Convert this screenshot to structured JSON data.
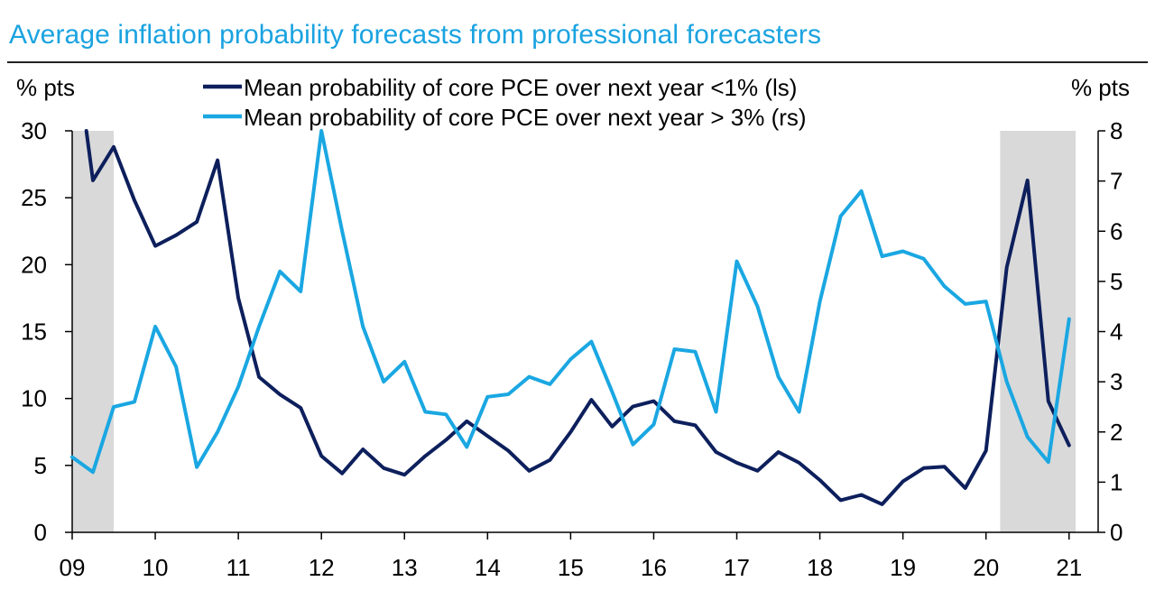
{
  "chart_data": {
    "type": "line",
    "title": "Average inflation probability forecasts from professional forecasters",
    "left_unit": "% pts",
    "right_unit": "% pts",
    "x_ticks": [
      "09",
      "10",
      "11",
      "12",
      "13",
      "14",
      "15",
      "16",
      "17",
      "18",
      "19",
      "20",
      "21"
    ],
    "x_range": [
      2009.0,
      2021.35
    ],
    "y_left": {
      "ticks": [
        "0",
        "5",
        "10",
        "15",
        "20",
        "25",
        "30"
      ],
      "range": [
        0,
        30
      ]
    },
    "y_right": {
      "ticks": [
        "0",
        "1",
        "2",
        "3",
        "4",
        "5",
        "6",
        "7",
        "8"
      ],
      "range": [
        0,
        8
      ]
    },
    "shaded_periods": [
      [
        2009.0,
        2009.5
      ],
      [
        2020.17,
        2021.08
      ]
    ],
    "series": [
      {
        "name": "Mean probability of core PCE over next year <1% (ls)",
        "axis": "left",
        "color": "#0d1f5c",
        "x": [
          2009.17,
          2009.25,
          2009.5,
          2009.75,
          2010.0,
          2010.25,
          2010.5,
          2010.75,
          2011.0,
          2011.25,
          2011.5,
          2011.75,
          2012.0,
          2012.25,
          2012.5,
          2012.75,
          2013.0,
          2013.25,
          2013.5,
          2013.75,
          2014.0,
          2014.25,
          2014.5,
          2014.75,
          2015.0,
          2015.25,
          2015.5,
          2015.75,
          2016.0,
          2016.25,
          2016.5,
          2016.75,
          2017.0,
          2017.25,
          2017.5,
          2017.75,
          2018.0,
          2018.25,
          2018.5,
          2018.75,
          2019.0,
          2019.25,
          2019.5,
          2019.75,
          2020.0,
          2020.25,
          2020.5,
          2020.75,
          2021.0
        ],
        "values": [
          30.0,
          26.3,
          28.8,
          24.8,
          21.4,
          22.2,
          23.2,
          27.8,
          17.5,
          11.6,
          10.3,
          9.3,
          5.7,
          4.4,
          6.2,
          4.8,
          4.3,
          5.7,
          6.9,
          8.3,
          7.2,
          6.1,
          4.6,
          5.4,
          7.5,
          9.9,
          7.9,
          9.4,
          9.8,
          8.3,
          8.0,
          6.0,
          5.2,
          4.6,
          6.0,
          5.2,
          3.9,
          2.4,
          2.8,
          2.1,
          3.8,
          4.8,
          4.9,
          3.3,
          6.1,
          19.8,
          26.3,
          9.8,
          6.5
        ]
      },
      {
        "name": "Mean probability of core PCE over next year > 3% (rs)",
        "axis": "right",
        "color": "#1aa7e2",
        "x": [
          2009.0,
          2009.25,
          2009.5,
          2009.75,
          2010.0,
          2010.25,
          2010.5,
          2010.75,
          2011.0,
          2011.25,
          2011.5,
          2011.75,
          2012.0,
          2012.25,
          2012.5,
          2012.75,
          2013.0,
          2013.25,
          2013.5,
          2013.75,
          2014.0,
          2014.25,
          2014.5,
          2014.75,
          2015.0,
          2015.25,
          2015.5,
          2015.75,
          2016.0,
          2016.25,
          2016.5,
          2016.75,
          2017.0,
          2017.25,
          2017.5,
          2017.75,
          2018.0,
          2018.25,
          2018.5,
          2018.75,
          2019.0,
          2019.25,
          2019.5,
          2019.75,
          2020.0,
          2020.25,
          2020.5,
          2020.75,
          2021.0
        ],
        "values": [
          1.5,
          1.2,
          2.5,
          2.6,
          4.1,
          3.3,
          1.3,
          2.0,
          2.9,
          4.1,
          5.2,
          4.8,
          8.0,
          6.0,
          4.1,
          3.0,
          3.4,
          2.4,
          2.35,
          1.7,
          2.7,
          2.75,
          3.1,
          2.95,
          3.45,
          3.8,
          2.8,
          1.75,
          2.15,
          3.65,
          3.6,
          2.4,
          5.4,
          4.5,
          3.1,
          2.4,
          4.6,
          6.3,
          6.8,
          5.5,
          5.6,
          5.45,
          4.9,
          4.55,
          4.6,
          3.0,
          1.9,
          1.4,
          4.25
        ]
      }
    ]
  }
}
